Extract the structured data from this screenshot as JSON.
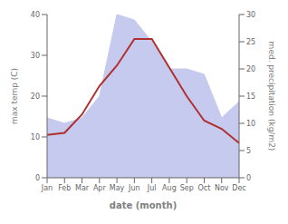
{
  "chart_data": {
    "type": "line",
    "xlabel": "date (month)",
    "ylabel": "max temp (C)",
    "y2label": "med. precipitation (kg/m2)",
    "categories": [
      "Jan",
      "Feb",
      "Mar",
      "Apr",
      "May",
      "Jun",
      "Jul",
      "Aug",
      "Sep",
      "Oct",
      "Nov",
      "Dec"
    ],
    "series": [
      {
        "type": "area",
        "axis": "y2",
        "color": "#c5caee",
        "values": [
          11,
          10,
          11,
          15,
          30,
          29,
          25,
          20,
          20,
          19,
          11,
          14
        ]
      },
      {
        "type": "line",
        "color": "#b03030",
        "values": [
          10.5,
          11.0,
          15.5,
          22.5,
          27.5,
          34.0,
          34.0,
          27.0,
          20.0,
          14.0,
          12.0,
          8.5
        ]
      }
    ],
    "ylim": [
      0,
      40
    ],
    "yticks": [
      0,
      10,
      20,
      30,
      40
    ],
    "y2lim": [
      0,
      30
    ],
    "y2ticks": [
      0,
      5,
      10,
      15,
      20,
      25,
      30
    ],
    "grid": false
  }
}
